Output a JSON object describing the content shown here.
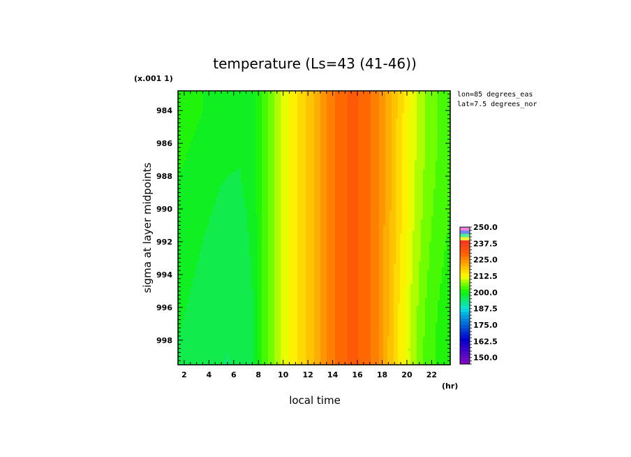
{
  "chart_data": {
    "type": "heatmap",
    "title": "temperature (Ls=43 (41-46))",
    "xlabel": "local time",
    "x_unit": "(hr)",
    "ylabel": "sigma at layer midpoints",
    "y_scale_note": "(x.001 1)",
    "annotations": [
      "lon=85 degrees_eas",
      "lat=7.5 degrees_nor"
    ],
    "xlim": [
      1.5,
      23.5
    ],
    "ylim": [
      999.5,
      982.8
    ],
    "x_ticks": [
      "2",
      "4",
      "6",
      "8",
      "10",
      "12",
      "14",
      "16",
      "18",
      "20",
      "22"
    ],
    "x_tick_values": [
      2,
      4,
      6,
      8,
      10,
      12,
      14,
      16,
      18,
      20,
      22
    ],
    "y_ticks": [
      "984",
      "986",
      "988",
      "990",
      "992",
      "994",
      "996",
      "998"
    ],
    "y_tick_values": [
      984,
      986,
      988,
      990,
      992,
      994,
      996,
      998
    ],
    "colorbar": {
      "min": 145.0,
      "max": 250.0,
      "step": 2.5,
      "labels": [
        "250.0",
        "237.5",
        "225.0",
        "212.5",
        "200.0",
        "187.5",
        "175.0",
        "162.5",
        "150.0"
      ],
      "label_values": [
        250.0,
        237.5,
        225.0,
        212.5,
        200.0,
        187.5,
        175.0,
        162.5,
        150.0
      ]
    },
    "x": [
      1.5,
      2.5,
      3.5,
      4.5,
      5.5,
      6.5,
      7.5,
      8.5,
      9.5,
      10.5,
      11.5,
      12.5,
      13.5,
      14.5,
      15.5,
      16.5,
      17.5,
      18.5,
      19.5,
      20.5,
      21.5,
      22.5,
      23.5
    ],
    "y": [
      982.8,
      984,
      986,
      988,
      990,
      992,
      994,
      996,
      998,
      999.5
    ],
    "z": [
      [
        202.0,
        201.0,
        200.0,
        199.0,
        198.5,
        198.0,
        199.0,
        203.5,
        208.5,
        212.5,
        216.0,
        220.0,
        225.0,
        229.0,
        230.5,
        229.5,
        226.0,
        221.0,
        216.0,
        211.0,
        207.5,
        205.0,
        203.5
      ],
      [
        202.0,
        201.0,
        200.0,
        199.0,
        198.5,
        198.0,
        199.0,
        203.5,
        208.5,
        212.5,
        216.0,
        220.0,
        225.0,
        229.0,
        230.5,
        229.5,
        226.0,
        221.0,
        216.0,
        211.0,
        207.5,
        205.0,
        203.5
      ],
      [
        201.0,
        200.0,
        199.2,
        198.4,
        198.0,
        197.8,
        199.0,
        203.5,
        208.5,
        212.5,
        216.0,
        220.0,
        225.0,
        229.0,
        230.5,
        229.5,
        226.0,
        221.0,
        215.5,
        211.0,
        207.5,
        205.0,
        203.5
      ],
      [
        200.0,
        199.3,
        198.6,
        198.0,
        197.5,
        197.4,
        198.8,
        203.5,
        208.5,
        212.5,
        216.0,
        220.0,
        225.0,
        229.0,
        230.5,
        229.5,
        226.0,
        221.0,
        215.5,
        210.5,
        207.0,
        204.5,
        203.0
      ],
      [
        199.3,
        198.6,
        198.0,
        197.4,
        196.5,
        196.8,
        198.2,
        203.5,
        208.5,
        212.5,
        216.0,
        220.0,
        225.0,
        229.0,
        230.5,
        229.5,
        226.0,
        221.0,
        215.5,
        210.5,
        206.5,
        204.0,
        202.5
      ],
      [
        198.8,
        198.1,
        197.5,
        196.9,
        196.4,
        196.5,
        197.8,
        203.5,
        208.5,
        212.5,
        216.0,
        220.0,
        225.0,
        229.0,
        230.5,
        229.5,
        226.0,
        220.5,
        215.0,
        210.0,
        206.0,
        203.5,
        202.0
      ],
      [
        198.3,
        197.7,
        197.1,
        196.5,
        196.0,
        196.3,
        197.6,
        203.5,
        208.5,
        212.5,
        216.0,
        220.0,
        225.0,
        229.0,
        230.5,
        229.5,
        226.0,
        220.5,
        214.5,
        209.5,
        205.5,
        203.0,
        201.5
      ],
      [
        197.9,
        197.3,
        196.7,
        196.1,
        195.5,
        196.0,
        197.3,
        203.5,
        208.5,
        212.5,
        216.0,
        220.0,
        225.0,
        229.0,
        230.5,
        229.5,
        226.0,
        220.5,
        214.0,
        209.0,
        205.0,
        202.5,
        201.0
      ],
      [
        197.5,
        196.9,
        196.3,
        195.8,
        195.2,
        195.7,
        197.0,
        203.5,
        208.5,
        212.5,
        216.0,
        220.0,
        225.0,
        229.0,
        230.5,
        229.5,
        226.0,
        220.0,
        213.5,
        208.5,
        204.5,
        202.0,
        200.5
      ],
      [
        197.3,
        196.6,
        196.0,
        195.5,
        194.8,
        195.5,
        196.8,
        203.5,
        208.5,
        212.5,
        216.0,
        220.0,
        225.0,
        229.0,
        230.5,
        229.5,
        226.0,
        220.0,
        213.5,
        208.5,
        204.5,
        202.0,
        200.5
      ]
    ]
  }
}
